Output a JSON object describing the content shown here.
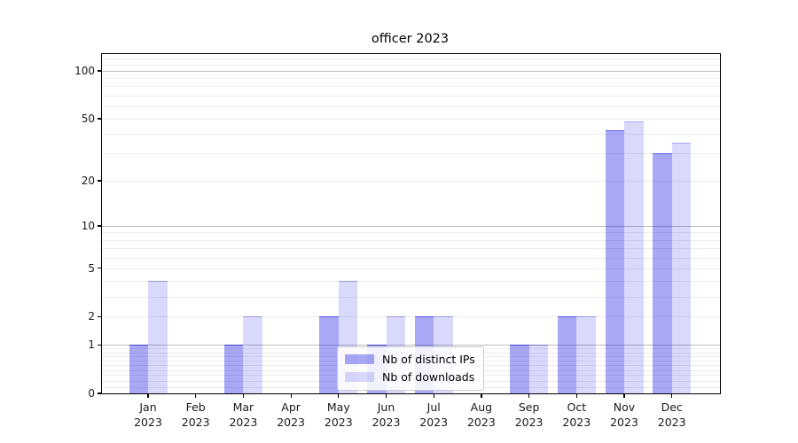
{
  "chart_data": {
    "type": "bar",
    "title": "officer 2023",
    "categories": [
      "Jan 2023",
      "Feb 2023",
      "Mar 2023",
      "Apr 2023",
      "May 2023",
      "Jun 2023",
      "Jul 2023",
      "Aug 2023",
      "Sep 2023",
      "Oct 2023",
      "Nov 2023",
      "Dec 2023"
    ],
    "series": [
      {
        "name": "Nb of distinct IPs",
        "values": [
          1,
          0,
          1,
          0,
          2,
          1,
          2,
          0,
          1,
          2,
          42,
          30
        ],
        "color": "rgba(0,0,230,0.34)",
        "edge_color": "rgba(0,0,210,0.42)"
      },
      {
        "name": "Nb of downloads",
        "values": [
          4,
          0,
          2,
          0,
          4,
          2,
          2,
          0,
          1,
          2,
          48,
          35
        ],
        "color": "rgba(0,0,230,0.15)",
        "edge_color": "rgba(0,0,210,0.22)"
      }
    ],
    "xlabel": "",
    "ylabel": "",
    "yscale": "log1p",
    "y_tick_values": [
      100,
      50,
      20,
      10,
      5,
      2,
      1,
      0
    ],
    "ylim": [
      0,
      128
    ],
    "grid": "both",
    "grid_major_values": [
      1,
      10,
      100
    ],
    "legend_position": "lower-center",
    "colors": {
      "grid_major": "#bdbdbd",
      "grid_minor": "#ececec",
      "axis": "#000000",
      "background": "#ffffff"
    }
  }
}
